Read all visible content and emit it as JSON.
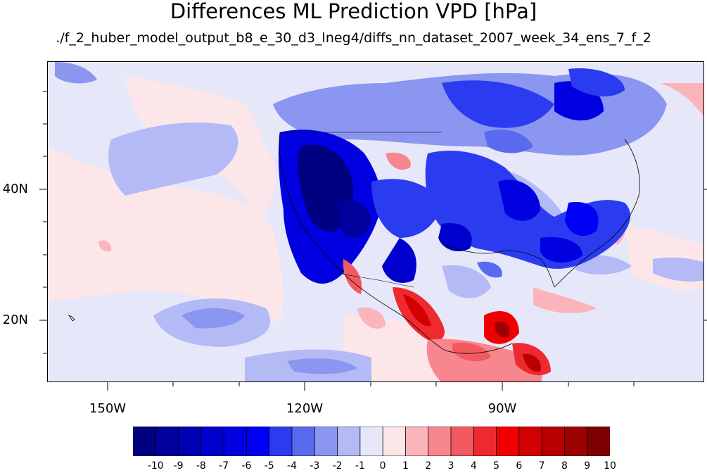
{
  "title": "Differences ML Prediction VPD [hPa]",
  "subtitle": "./f_2_huber_model_output_b8_e_30_d3_lneg4/diffs_nn_dataset_2007_week_34_ens_7_f_2",
  "axes": {
    "lat_labels": [
      "40N",
      "20N"
    ],
    "lon_labels": [
      "150W",
      "120W",
      "90W"
    ]
  },
  "colorbar": {
    "labels": [
      "-10",
      "-9",
      "-8",
      "-7",
      "-6",
      "-5",
      "-4",
      "-3",
      "-2",
      "-1",
      "0",
      "1",
      "2",
      "3",
      "4",
      "5",
      "6",
      "7",
      "8",
      "9",
      "10"
    ],
    "colors": [
      "#000080",
      "#00009c",
      "#0000b4",
      "#0000cc",
      "#0000e0",
      "#0000f5",
      "#2b3cf0",
      "#5a6af0",
      "#8a96f0",
      "#b4baf5",
      "#e6e8fa",
      "#fde6e8",
      "#fbb4b9",
      "#f7868e",
      "#f25a62",
      "#ee2a30",
      "#f00000",
      "#d20000",
      "#b80000",
      "#9c0000",
      "#7d0000"
    ]
  }
}
